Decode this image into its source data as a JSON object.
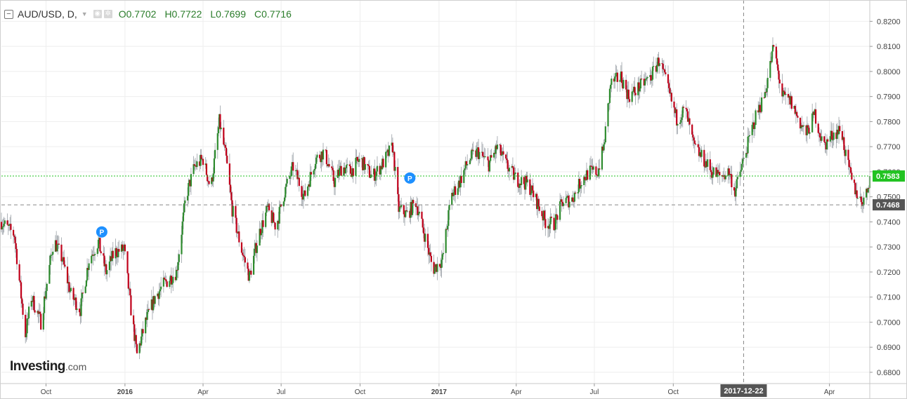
{
  "legend": {
    "collapse_glyph": "−",
    "symbol": "AUD/USD, D,",
    "caret": "▼",
    "open": "O0.7702",
    "high": "H0.7722",
    "low": "L0.7699",
    "close": "C0.7716",
    "eye_icon": "eye-icon",
    "settings_icon": "gear-icon"
  },
  "logo": {
    "name": "Investing",
    "suffix": ".com"
  },
  "colors": {
    "up": "#2e8b2e",
    "down": "#c0001a",
    "wick": "#9aa0a6",
    "current_price_line": "#22c322",
    "current_price_badge": "#22c322",
    "crosshair_badge": "#555555",
    "grid": "#eeeeee",
    "note_marker": "#1e90ff"
  },
  "chart_data": {
    "type": "candlestick",
    "instrument": "AUD/USD",
    "timeframe": "D",
    "x_range": [
      "2015-08-10",
      "2018-05-18"
    ],
    "y_range": [
      0.6755,
      0.8285
    ],
    "y_ticks": [
      "0.8200",
      "0.8100",
      "0.8000",
      "0.7900",
      "0.7800",
      "0.7700",
      "0.7600",
      "0.7500",
      "0.7400",
      "0.7300",
      "0.7200",
      "0.7100",
      "0.7000",
      "0.6900",
      "0.6800"
    ],
    "x_ticks": [
      {
        "label": "Oct",
        "date": "2015-10-01"
      },
      {
        "label": "2016",
        "date": "2016-01-01"
      },
      {
        "label": "Apr",
        "date": "2016-04-01"
      },
      {
        "label": "Jul",
        "date": "2016-07-01"
      },
      {
        "label": "Oct",
        "date": "2016-10-01"
      },
      {
        "label": "2017",
        "date": "2017-01-01"
      },
      {
        "label": "Apr",
        "date": "2017-04-01"
      },
      {
        "label": "Jul",
        "date": "2017-07-01"
      },
      {
        "label": "Oct",
        "date": "2017-10-01"
      },
      {
        "label": "Apr",
        "date": "2018-04-01"
      }
    ],
    "bold_ticks": [
      "2016",
      "2017"
    ],
    "price_path": [
      [
        "2015-08-10",
        0.74
      ],
      [
        "2015-08-25",
        0.735
      ],
      [
        "2015-09-07",
        0.695
      ],
      [
        "2015-09-14",
        0.71
      ],
      [
        "2015-09-25",
        0.7
      ],
      [
        "2015-10-10",
        0.733
      ],
      [
        "2015-10-20",
        0.725
      ],
      [
        "2015-10-30",
        0.711
      ],
      [
        "2015-11-10",
        0.705
      ],
      [
        "2015-11-20",
        0.725
      ],
      [
        "2015-12-01",
        0.732
      ],
      [
        "2015-12-10",
        0.72
      ],
      [
        "2015-12-20",
        0.728
      ],
      [
        "2015-12-31",
        0.729
      ],
      [
        "2016-01-08",
        0.705
      ],
      [
        "2016-01-15",
        0.687
      ],
      [
        "2016-01-25",
        0.7
      ],
      [
        "2016-02-05",
        0.71
      ],
      [
        "2016-02-15",
        0.715
      ],
      [
        "2016-03-01",
        0.72
      ],
      [
        "2016-03-12",
        0.75
      ],
      [
        "2016-03-22",
        0.762
      ],
      [
        "2016-04-01",
        0.765
      ],
      [
        "2016-04-10",
        0.753
      ],
      [
        "2016-04-20",
        0.78
      ],
      [
        "2016-04-28",
        0.765
      ],
      [
        "2016-05-05",
        0.745
      ],
      [
        "2016-05-15",
        0.73
      ],
      [
        "2016-05-25",
        0.718
      ],
      [
        "2016-06-05",
        0.735
      ],
      [
        "2016-06-15",
        0.745
      ],
      [
        "2016-06-25",
        0.738
      ],
      [
        "2016-07-05",
        0.752
      ],
      [
        "2016-07-15",
        0.762
      ],
      [
        "2016-07-28",
        0.75
      ],
      [
        "2016-08-10",
        0.765
      ],
      [
        "2016-08-20",
        0.768
      ],
      [
        "2016-09-01",
        0.756
      ],
      [
        "2016-09-10",
        0.762
      ],
      [
        "2016-09-20",
        0.76
      ],
      [
        "2016-10-01",
        0.765
      ],
      [
        "2016-10-15",
        0.758
      ],
      [
        "2016-10-25",
        0.762
      ],
      [
        "2016-11-08",
        0.77
      ],
      [
        "2016-11-15",
        0.745
      ],
      [
        "2016-11-25",
        0.743
      ],
      [
        "2016-12-05",
        0.748
      ],
      [
        "2016-12-15",
        0.735
      ],
      [
        "2016-12-25",
        0.721
      ],
      [
        "2017-01-05",
        0.725
      ],
      [
        "2017-01-15",
        0.75
      ],
      [
        "2017-01-25",
        0.756
      ],
      [
        "2017-02-05",
        0.765
      ],
      [
        "2017-02-15",
        0.768
      ],
      [
        "2017-02-28",
        0.763
      ],
      [
        "2017-03-10",
        0.77
      ],
      [
        "2017-03-20",
        0.763
      ],
      [
        "2017-04-01",
        0.757
      ],
      [
        "2017-04-15",
        0.755
      ],
      [
        "2017-04-25",
        0.748
      ],
      [
        "2017-05-05",
        0.74
      ],
      [
        "2017-05-15",
        0.739
      ],
      [
        "2017-05-25",
        0.748
      ],
      [
        "2017-06-05",
        0.749
      ],
      [
        "2017-06-15",
        0.756
      ],
      [
        "2017-06-25",
        0.76
      ],
      [
        "2017-07-05",
        0.76
      ],
      [
        "2017-07-12",
        0.77
      ],
      [
        "2017-07-20",
        0.795
      ],
      [
        "2017-08-01",
        0.798
      ],
      [
        "2017-08-10",
        0.79
      ],
      [
        "2017-08-20",
        0.793
      ],
      [
        "2017-09-05",
        0.798
      ],
      [
        "2017-09-15",
        0.805
      ],
      [
        "2017-09-22",
        0.796
      ],
      [
        "2017-10-05",
        0.781
      ],
      [
        "2017-10-15",
        0.785
      ],
      [
        "2017-10-25",
        0.77
      ],
      [
        "2017-11-05",
        0.765
      ],
      [
        "2017-11-15",
        0.76
      ],
      [
        "2017-11-25",
        0.758
      ],
      [
        "2017-12-05",
        0.76
      ],
      [
        "2017-12-12",
        0.752
      ],
      [
        "2017-12-22",
        0.765
      ],
      [
        "2018-01-05",
        0.782
      ],
      [
        "2018-01-15",
        0.79
      ],
      [
        "2018-01-26",
        0.81
      ],
      [
        "2018-02-05",
        0.79
      ],
      [
        "2018-02-15",
        0.788
      ],
      [
        "2018-02-25",
        0.78
      ],
      [
        "2018-03-05",
        0.775
      ],
      [
        "2018-03-15",
        0.783
      ],
      [
        "2018-03-25",
        0.77
      ],
      [
        "2018-04-05",
        0.775
      ],
      [
        "2018-04-15",
        0.777
      ],
      [
        "2018-04-20",
        0.766
      ],
      [
        "2018-04-28",
        0.755
      ],
      [
        "2018-05-08",
        0.748
      ],
      [
        "2018-05-14",
        0.751
      ],
      [
        "2018-05-18",
        0.7583
      ]
    ],
    "last_open": 0.755,
    "current_price": {
      "value": 0.7583,
      "label": "0.7583"
    },
    "crosshair": {
      "price": 0.7468,
      "price_label": "0.7468",
      "date": "2017-12-22",
      "date_label": "2017-12-22"
    },
    "markers": [
      {
        "date": "2015-12-05",
        "price": 0.736,
        "label": "P"
      },
      {
        "date": "2016-11-28",
        "price": 0.7575,
        "label": "P"
      }
    ],
    "grid": true,
    "legend_position": "top-left"
  }
}
